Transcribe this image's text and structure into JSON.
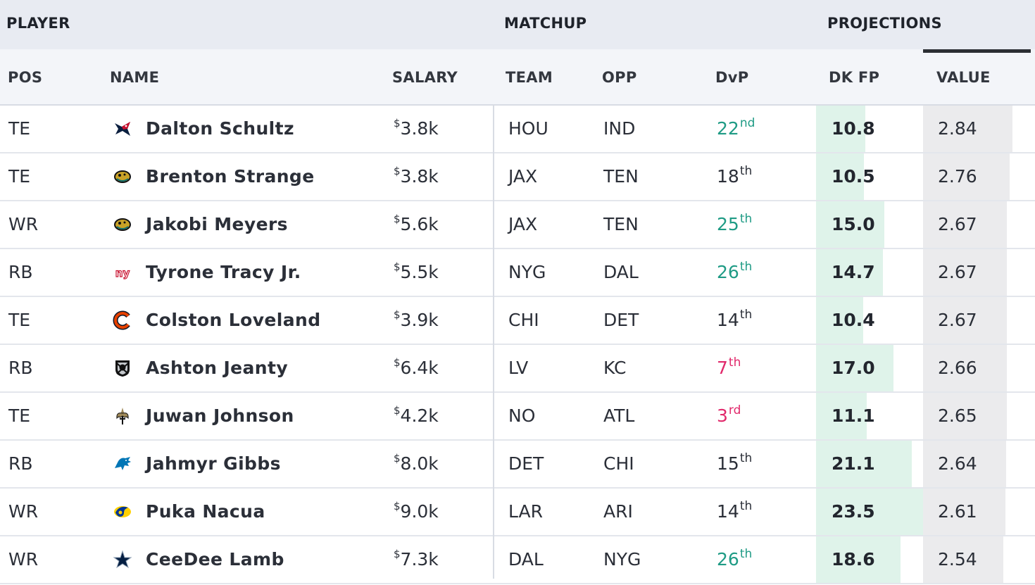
{
  "group_headers": {
    "player": "PLAYER",
    "matchup": "MATCHUP",
    "projections": "PROJECTIONS"
  },
  "columns": {
    "pos": "POS",
    "name": "NAME",
    "salary": "SALARY",
    "team": "TEAM",
    "opp": "OPP",
    "dvp": "DvP",
    "dkfp": "DK FP",
    "value": "VALUE"
  },
  "currency_symbol": "$",
  "colors": {
    "dvp_good": "#1f9b85",
    "dvp_bad": "#e1296b",
    "fp_bar": "#dff3ea",
    "value_bar": "#ebebed"
  },
  "rows": [
    {
      "pos": "TE",
      "name": "Dalton Schultz",
      "logo": "texans-logo-icon",
      "salary": "3.8k",
      "team": "HOU",
      "opp": "IND",
      "dvp_rank": "22",
      "dvp_suffix": "nd",
      "dvp_tone": "good",
      "dkfp": "10.8",
      "value": "2.84"
    },
    {
      "pos": "TE",
      "name": "Brenton Strange",
      "logo": "jaguars-logo-icon",
      "salary": "3.8k",
      "team": "JAX",
      "opp": "TEN",
      "dvp_rank": "18",
      "dvp_suffix": "th",
      "dvp_tone": "neutral",
      "dkfp": "10.5",
      "value": "2.76"
    },
    {
      "pos": "WR",
      "name": "Jakobi Meyers",
      "logo": "jaguars-logo-icon",
      "salary": "5.6k",
      "team": "JAX",
      "opp": "TEN",
      "dvp_rank": "25",
      "dvp_suffix": "th",
      "dvp_tone": "good",
      "dkfp": "15.0",
      "value": "2.67"
    },
    {
      "pos": "RB",
      "name": "Tyrone Tracy Jr.",
      "logo": "giants-logo-icon",
      "salary": "5.5k",
      "team": "NYG",
      "opp": "DAL",
      "dvp_rank": "26",
      "dvp_suffix": "th",
      "dvp_tone": "good",
      "dkfp": "14.7",
      "value": "2.67"
    },
    {
      "pos": "TE",
      "name": "Colston Loveland",
      "logo": "bears-logo-icon",
      "salary": "3.9k",
      "team": "CHI",
      "opp": "DET",
      "dvp_rank": "14",
      "dvp_suffix": "th",
      "dvp_tone": "neutral",
      "dkfp": "10.4",
      "value": "2.67"
    },
    {
      "pos": "RB",
      "name": "Ashton Jeanty",
      "logo": "raiders-logo-icon",
      "salary": "6.4k",
      "team": "LV",
      "opp": "KC",
      "dvp_rank": "7",
      "dvp_suffix": "th",
      "dvp_tone": "bad",
      "dkfp": "17.0",
      "value": "2.66"
    },
    {
      "pos": "TE",
      "name": "Juwan Johnson",
      "logo": "saints-logo-icon",
      "salary": "4.2k",
      "team": "NO",
      "opp": "ATL",
      "dvp_rank": "3",
      "dvp_suffix": "rd",
      "dvp_tone": "bad",
      "dkfp": "11.1",
      "value": "2.65"
    },
    {
      "pos": "RB",
      "name": "Jahmyr Gibbs",
      "logo": "lions-logo-icon",
      "salary": "8.0k",
      "team": "DET",
      "opp": "CHI",
      "dvp_rank": "15",
      "dvp_suffix": "th",
      "dvp_tone": "neutral",
      "dkfp": "21.1",
      "value": "2.64"
    },
    {
      "pos": "WR",
      "name": "Puka Nacua",
      "logo": "rams-logo-icon",
      "salary": "9.0k",
      "team": "LAR",
      "opp": "ARI",
      "dvp_rank": "14",
      "dvp_suffix": "th",
      "dvp_tone": "neutral",
      "dkfp": "23.5",
      "value": "2.61"
    },
    {
      "pos": "WR",
      "name": "CeeDee Lamb",
      "logo": "cowboys-logo-icon",
      "salary": "7.3k",
      "team": "DAL",
      "opp": "NYG",
      "dvp_rank": "26",
      "dvp_suffix": "th",
      "dvp_tone": "good",
      "dkfp": "18.6",
      "value": "2.54"
    }
  ]
}
